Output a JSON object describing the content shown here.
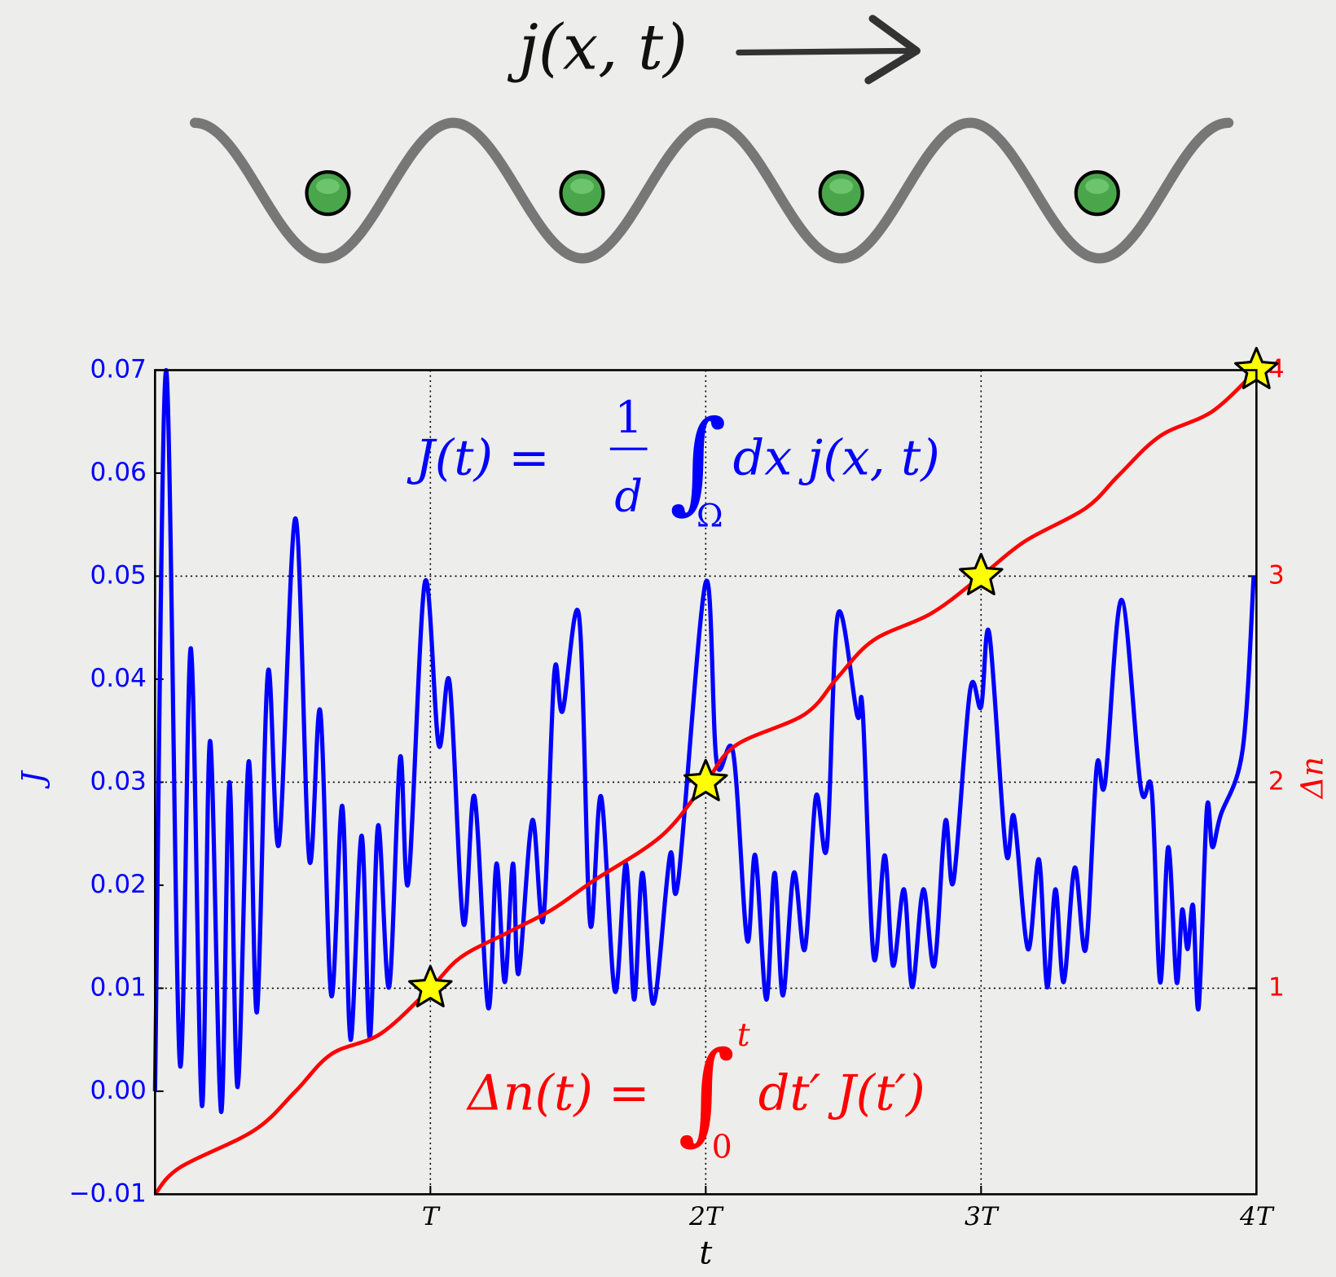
{
  "header": {
    "label": "j(x, t)"
  },
  "chart_data": {
    "type": "line",
    "xlabel": "t",
    "ylabel": "J",
    "y2label": "Δn",
    "annotations": [
      {
        "lhs": "J(t) =",
        "numerator": "1",
        "denominator": "d",
        "integral": "∫",
        "lower": "Ω",
        "body": "dx j(x, t)",
        "color": "#0000ff"
      },
      {
        "lhs": "Δn(t) =",
        "integral": "∫",
        "lower": "0",
        "upper": "t",
        "body": "dt′ J(t′)",
        "color": "#ff0000"
      }
    ],
    "xlim": [
      0,
      4
    ],
    "xticks": [
      {
        "value": 1,
        "label": "T"
      },
      {
        "value": 2,
        "label": "2T"
      },
      {
        "value": 3,
        "label": "3T"
      },
      {
        "value": 4,
        "label": "4T"
      }
    ],
    "ylim": [
      -0.01,
      0.07
    ],
    "yticks": [
      {
        "value": -0.01,
        "label": "−0.01"
      },
      {
        "value": 0,
        "label": "0.00"
      },
      0.01,
      0.02,
      0.03,
      0.04,
      0.05,
      0.06,
      0.07
    ],
    "y2lim": [
      0,
      4
    ],
    "y2ticks": [
      1,
      2,
      3,
      4
    ],
    "grid": true,
    "series": [
      {
        "color": "#0000ff",
        "x": [
          0,
          0.04,
          0.09,
          0.13,
          0.17,
          0.2,
          0.24,
          0.27,
          0.3,
          0.34,
          0.37,
          0.41,
          0.45,
          0.51,
          0.56,
          0.6,
          0.64,
          0.68,
          0.71,
          0.75,
          0.78,
          0.81,
          0.85,
          0.89,
          0.92,
          0.98,
          1.03,
          1.07,
          1.12,
          1.16,
          1.21,
          1.24,
          1.27,
          1.3,
          1.32,
          1.37,
          1.41,
          1.45,
          1.48,
          1.54,
          1.58,
          1.62,
          1.67,
          1.71,
          1.74,
          1.77,
          1.81,
          1.87,
          1.9,
          2.0,
          2.04,
          2.1,
          2.15,
          2.18,
          2.22,
          2.25,
          2.28,
          2.32,
          2.36,
          2.4,
          2.44,
          2.48,
          2.55,
          2.57,
          2.61,
          2.65,
          2.68,
          2.72,
          2.75,
          2.79,
          2.83,
          2.87,
          2.9,
          2.96,
          3.0,
          3.03,
          3.09,
          3.12,
          3.17,
          3.21,
          3.24,
          3.27,
          3.3,
          3.34,
          3.38,
          3.42,
          3.45,
          3.51,
          3.58,
          3.62,
          3.65,
          3.68,
          3.71,
          3.73,
          3.75,
          3.77,
          3.79,
          3.82,
          3.84,
          3.87,
          3.95,
          3.99
        ],
        "values": [
          0,
          0.07,
          0.0027,
          0.043,
          -0.0014,
          0.034,
          -0.002,
          0.03,
          0.0004,
          0.032,
          0.0077,
          0.0407,
          0.024,
          0.0556,
          0.0225,
          0.0369,
          0.0093,
          0.0277,
          0.005,
          0.0248,
          0.0052,
          0.0258,
          0.0101,
          0.0324,
          0.0203,
          0.0494,
          0.0336,
          0.0396,
          0.0163,
          0.0286,
          0.0081,
          0.0221,
          0.0106,
          0.0221,
          0.0114,
          0.0263,
          0.0167,
          0.0406,
          0.0369,
          0.0461,
          0.0163,
          0.0286,
          0.0097,
          0.0221,
          0.0089,
          0.0212,
          0.0085,
          0.0229,
          0.0204,
          0.0494,
          0.0319,
          0.0328,
          0.0147,
          0.0229,
          0.0089,
          0.0212,
          0.0093,
          0.0212,
          0.0138,
          0.0286,
          0.0237,
          0.0463,
          0.0365,
          0.0369,
          0.013,
          0.0229,
          0.0122,
          0.0196,
          0.0101,
          0.0196,
          0.0122,
          0.0262,
          0.0204,
          0.0389,
          0.0373,
          0.0444,
          0.0233,
          0.0266,
          0.0138,
          0.0225,
          0.0101,
          0.0196,
          0.0106,
          0.0217,
          0.0138,
          0.0315,
          0.0299,
          0.0477,
          0.0295,
          0.0291,
          0.0106,
          0.0237,
          0.0106,
          0.0176,
          0.0138,
          0.018,
          0.0081,
          0.0274,
          0.0237,
          0.0268,
          0.0332,
          0.05
        ]
      },
      {
        "color": "#ff0000",
        "axis": "y2",
        "x": [
          0,
          0.09,
          0.36,
          0.51,
          0.64,
          0.82,
          1,
          1.11,
          1.28,
          1.44,
          1.59,
          1.84,
          2,
          2.11,
          2.36,
          2.48,
          2.61,
          2.82,
          3,
          3.16,
          3.38,
          3.5,
          3.65,
          3.84,
          4
        ],
        "values": [
          0,
          0.13,
          0.31,
          0.5,
          0.68,
          0.78,
          1,
          1.15,
          1.27,
          1.38,
          1.52,
          1.74,
          2,
          2.18,
          2.33,
          2.51,
          2.69,
          2.82,
          3,
          3.17,
          3.33,
          3.49,
          3.68,
          3.8,
          4
        ]
      }
    ],
    "markers": {
      "color": "#ffff00",
      "axis": "y2",
      "x": [
        1,
        2,
        3,
        4
      ],
      "values": [
        1,
        2,
        3,
        4
      ]
    }
  }
}
